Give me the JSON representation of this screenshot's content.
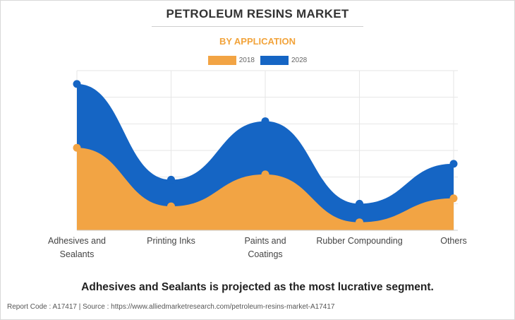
{
  "header": {
    "title": "PETROLEUM RESINS MARKET",
    "subtitle": "BY APPLICATION"
  },
  "colors": {
    "series_2018": "#f2a444",
    "series_2028": "#1565c4",
    "title_accent": "#f2a33a"
  },
  "chart_data": {
    "type": "area",
    "categories": [
      "Adhesives and Sealants",
      "Printing Inks",
      "Paints and Coatings",
      "Rubber Compounding",
      "Others"
    ],
    "category_label_lines": [
      [
        "Adhesives and",
        "Sealants"
      ],
      [
        "Printing Inks"
      ],
      [
        "Paints and",
        "Coatings"
      ],
      [
        "Rubber Compounding"
      ],
      [
        "Others"
      ]
    ],
    "series": [
      {
        "name": "2018",
        "values": [
          3.1,
          0.9,
          2.1,
          0.3,
          1.2
        ]
      },
      {
        "name": "2028",
        "values": [
          5.5,
          1.9,
          4.1,
          1.0,
          2.5
        ]
      }
    ],
    "ylim": [
      0,
      6
    ],
    "y_axis_labels_shown": false,
    "grid": true,
    "legend_placement": "top-center",
    "stacked": false,
    "smooth": true
  },
  "headline": "Adhesives and Sealants is projected as the most lucrative segment.",
  "footer": "Report Code : A17417  |  Source : https://www.alliedmarketresearch.com/petroleum-resins-market-A17417"
}
